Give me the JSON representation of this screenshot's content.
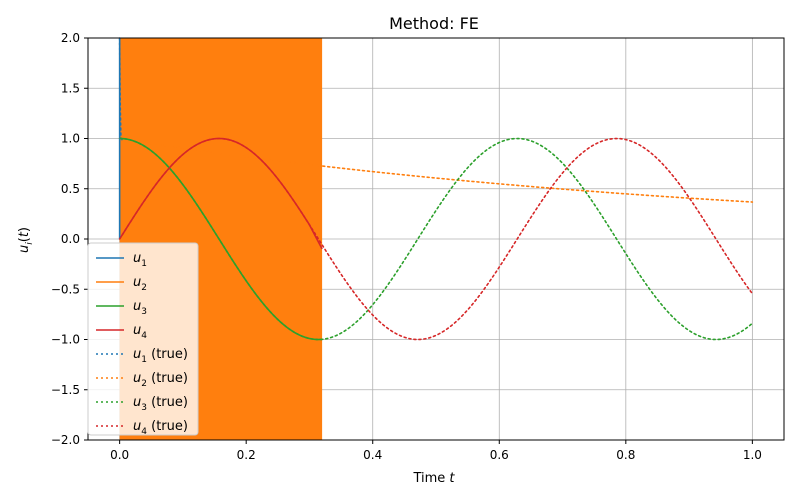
{
  "chart_data": {
    "type": "line",
    "title": "Method: FE",
    "xlabel": "Time t",
    "ylabel": "u_i(t)",
    "xlim": [
      -0.05,
      1.05
    ],
    "ylim": [
      -2.0,
      2.0
    ],
    "grid": true,
    "legend_position": "lower-left",
    "x_ticks": [
      0.0,
      0.2,
      0.4,
      0.6,
      0.8,
      1.0
    ],
    "x_tick_labels": [
      "0.0",
      "0.2",
      "0.4",
      "0.6",
      "0.8",
      "1.0"
    ],
    "y_ticks": [
      -2.0,
      -1.5,
      -1.0,
      -0.5,
      0.0,
      0.5,
      1.0,
      1.5,
      2.0
    ],
    "y_tick_labels": [
      "−2.0",
      "−1.5",
      "−1.0",
      "−0.5",
      "0.0",
      "0.5",
      "1.0",
      "1.5",
      "2.0"
    ],
    "numerical_t_end": 0.32,
    "series": [
      {
        "name": "u_1",
        "legend_label": "u1",
        "style": "solid",
        "color": "#1f77b4",
        "description": "numerical; blows up instantly",
        "x": [
          0.0,
          0.0
        ],
        "y": [
          0.0,
          2.0
        ]
      },
      {
        "name": "u_2",
        "legend_label": "u2",
        "style": "solid",
        "color": "#ff7f0e",
        "description": "numerical; oscillates between -2 and 2 (fills band)",
        "x_range": [
          0.0,
          0.32
        ],
        "y_range": [
          -2.0,
          2.0
        ]
      },
      {
        "name": "u_3",
        "legend_label": "u3",
        "style": "solid",
        "color": "#2ca02c",
        "x": [
          0.0,
          0.04,
          0.08,
          0.12,
          0.16,
          0.2,
          0.24,
          0.28,
          0.32
        ],
        "y": [
          1.0,
          0.95,
          0.81,
          0.59,
          0.3,
          0.0,
          -0.31,
          -0.63,
          -1.0
        ]
      },
      {
        "name": "u_4",
        "legend_label": "u4",
        "style": "solid",
        "color": "#d62728",
        "x": [
          0.0,
          0.04,
          0.08,
          0.12,
          0.16,
          0.2,
          0.24,
          0.28,
          0.32
        ],
        "y": [
          0.0,
          0.31,
          0.59,
          0.81,
          1.0,
          0.95,
          0.81,
          0.59,
          -0.1
        ]
      },
      {
        "name": "u_1 (true)",
        "legend_label": "u1 (true)",
        "style": "dotted",
        "color": "#1f77b4",
        "x": [
          0.0,
          0.0005,
          0.001,
          0.002,
          0.005
        ],
        "y": [
          2.0,
          1.6,
          1.3,
          1.0,
          0.98
        ]
      },
      {
        "name": "u_2 (true)",
        "legend_label": "u2 (true)",
        "style": "dotted",
        "color": "#ff7f0e",
        "x": [
          0.0,
          0.2,
          0.4,
          0.6,
          0.8,
          1.0
        ],
        "y": [
          1.0,
          0.82,
          0.67,
          0.55,
          0.45,
          0.37
        ]
      },
      {
        "name": "u_3 (true)",
        "legend_label": "u3 (true)",
        "style": "dotted",
        "color": "#2ca02c",
        "x": [
          0.0,
          0.157,
          0.314,
          0.471,
          0.628,
          0.785,
          0.942,
          1.0
        ],
        "y": [
          1.0,
          0.0,
          -1.0,
          0.0,
          1.0,
          0.0,
          -1.0,
          -0.84
        ]
      },
      {
        "name": "u_4 (true)",
        "legend_label": "u4 (true)",
        "style": "dotted",
        "color": "#d62728",
        "x": [
          0.0,
          0.157,
          0.314,
          0.471,
          0.628,
          0.785,
          0.942,
          1.0
        ],
        "y": [
          0.0,
          1.0,
          0.0,
          -1.0,
          0.0,
          1.0,
          0.0,
          -0.54
        ]
      }
    ]
  }
}
